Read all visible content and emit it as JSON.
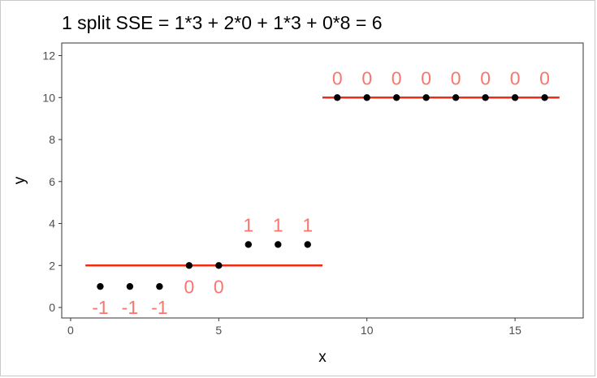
{
  "chart_data": {
    "type": "scatter",
    "title": "1 split SSE = 1*3 + 2*0 + 1*3 + 0*8 = 6",
    "xlabel": "x",
    "ylabel": "y",
    "xlim": [
      -0.3,
      17.3
    ],
    "ylim": [
      -0.5,
      12.6
    ],
    "x_ticks": [
      0,
      5,
      10,
      15
    ],
    "y_ticks": [
      0,
      2,
      4,
      6,
      8,
      10,
      12
    ],
    "grid": false,
    "points": {
      "x": [
        1,
        2,
        3,
        4,
        5,
        6,
        7,
        8,
        9,
        10,
        11,
        12,
        13,
        14,
        15,
        16
      ],
      "y": [
        1,
        1,
        1,
        2,
        2,
        3,
        3,
        3,
        10,
        10,
        10,
        10,
        10,
        10,
        10,
        10
      ]
    },
    "residual_labels": [
      "-1",
      "-1",
      "-1",
      "0",
      "0",
      "1",
      "1",
      "1",
      "0",
      "0",
      "0",
      "0",
      "0",
      "0",
      "0",
      "0"
    ],
    "split_lines": [
      {
        "x_start": 0.5,
        "x_end": 8.5,
        "y": 2
      },
      {
        "x_start": 8.5,
        "x_end": 16.5,
        "y": 10
      }
    ],
    "colors": {
      "line": "#ee2c15",
      "labels": "#f8766d",
      "points": "#000000",
      "panel_border": "#333333"
    }
  }
}
